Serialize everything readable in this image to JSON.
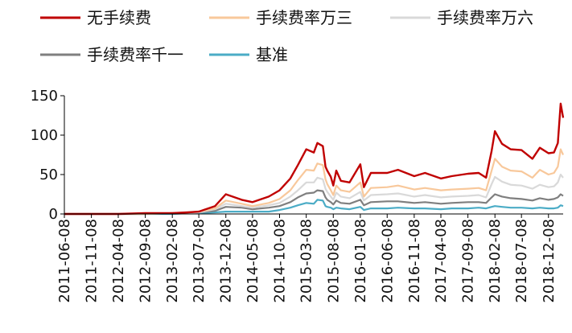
{
  "chart_data": {
    "type": "line",
    "title": "",
    "xlabel": "",
    "ylabel": "",
    "ylim": [
      0,
      150
    ],
    "yticks": [
      0,
      50,
      100,
      150
    ],
    "grid": false,
    "legend_position": "top",
    "x_tick_labels": [
      "2011-06-08",
      "2011-11-08",
      "2012-04-08",
      "2012-09-08",
      "2013-02-08",
      "2013-07-08",
      "2013-12-08",
      "2014-05-08",
      "2014-10-08",
      "2015-03-08",
      "2015-08-08",
      "2016-01-08",
      "2016-06-08",
      "2016-11-08",
      "2017-04-08",
      "2017-09-08",
      "2018-02-08",
      "2018-07-08",
      "2018-12-08"
    ],
    "x": [
      "2011-06-08",
      "2011-11-08",
      "2012-04-08",
      "2012-09-08",
      "2013-02-08",
      "2013-05-08",
      "2013-07-08",
      "2013-10-08",
      "2013-12-08",
      "2014-03-08",
      "2014-05-08",
      "2014-08-08",
      "2014-10-08",
      "2014-12-08",
      "2015-01-20",
      "2015-03-08",
      "2015-04-20",
      "2015-05-10",
      "2015-06-10",
      "2015-06-25",
      "2015-07-05",
      "2015-07-25",
      "2015-08-08",
      "2015-08-25",
      "2015-09-20",
      "2015-11-08",
      "2016-01-08",
      "2016-01-28",
      "2016-03-08",
      "2016-06-08",
      "2016-08-08",
      "2016-11-08",
      "2017-01-08",
      "2017-04-08",
      "2017-06-08",
      "2017-09-08",
      "2017-11-08",
      "2017-12-20",
      "2018-01-20",
      "2018-02-08",
      "2018-03-20",
      "2018-05-08",
      "2018-07-08",
      "2018-09-08",
      "2018-10-20",
      "2018-12-08",
      "2019-01-08",
      "2019-01-30",
      "2019-02-15",
      "2019-03-01"
    ],
    "series": [
      {
        "name": "无手续费",
        "color": "#c00000",
        "values": [
          0,
          0,
          0,
          1,
          1,
          2,
          3,
          10,
          25,
          18,
          15,
          22,
          30,
          45,
          62,
          82,
          78,
          90,
          86,
          60,
          55,
          47,
          36,
          55,
          42,
          40,
          63,
          34,
          52,
          52,
          56,
          48,
          52,
          45,
          48,
          51,
          52,
          46,
          80,
          105,
          89,
          82,
          81,
          70,
          84,
          77,
          78,
          90,
          140,
          122
        ]
      },
      {
        "name": "手续费率万三",
        "color": "#f8c89b",
        "values": [
          0,
          0,
          0,
          0,
          1,
          2,
          3,
          7,
          17,
          13,
          10,
          14,
          19,
          30,
          43,
          56,
          55,
          64,
          62,
          44,
          38,
          30,
          24,
          36,
          30,
          28,
          40,
          22,
          33,
          34,
          36,
          31,
          33,
          30,
          31,
          32,
          33,
          30,
          55,
          70,
          60,
          55,
          54,
          46,
          56,
          50,
          52,
          60,
          82,
          75
        ]
      },
      {
        "name": "手续费率万六",
        "color": "#d9d9d9",
        "values": [
          0,
          0,
          0,
          0,
          1,
          1,
          2,
          6,
          13,
          10,
          8,
          11,
          14,
          22,
          30,
          40,
          40,
          46,
          44,
          32,
          28,
          22,
          18,
          27,
          22,
          20,
          28,
          17,
          24,
          25,
          26,
          22,
          24,
          21,
          22,
          23,
          24,
          21,
          38,
          47,
          41,
          37,
          36,
          32,
          37,
          34,
          35,
          40,
          50,
          46
        ]
      },
      {
        "name": "手续费率千一",
        "color": "#7f7f7f",
        "values": [
          0,
          0,
          0,
          0,
          1,
          1,
          2,
          4,
          9,
          8,
          6,
          8,
          10,
          15,
          21,
          26,
          27,
          30,
          29,
          21,
          18,
          15,
          12,
          17,
          14,
          13,
          18,
          11,
          15,
          16,
          16,
          14,
          15,
          13,
          14,
          15,
          15,
          14,
          21,
          25,
          22,
          20,
          19,
          17,
          20,
          18,
          19,
          21,
          25,
          23
        ]
      },
      {
        "name": "基准",
        "color": "#4bacc6",
        "values": [
          0,
          0,
          0,
          0,
          0,
          1,
          1,
          2,
          3,
          3,
          3,
          3,
          5,
          8,
          11,
          14,
          13,
          18,
          17,
          10,
          9,
          8,
          6,
          8,
          7,
          6,
          9,
          5,
          7,
          7,
          8,
          7,
          7,
          6,
          7,
          7,
          8,
          7,
          9,
          10,
          9,
          8,
          8,
          7,
          8,
          7,
          7,
          8,
          11,
          10
        ]
      }
    ]
  }
}
